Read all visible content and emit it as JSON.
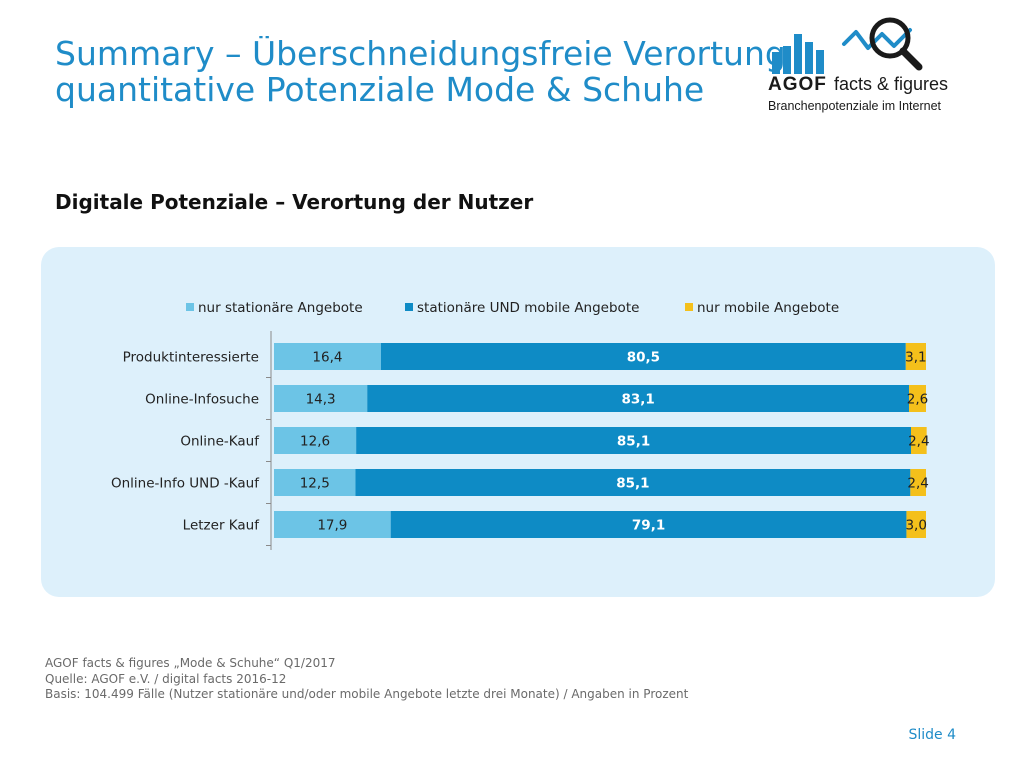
{
  "slide": {
    "title_line1": "Summary – Überschneidungsfreie Verortung",
    "title_line2": "quantitative Potenziale Mode & Schuhe",
    "subtitle": "Digitale Potenziale – Verortung der Nutzer",
    "slide_number": "Slide 4"
  },
  "logo": {
    "brand": "AGOF",
    "tagline": "facts & figures",
    "caption": "Branchenpotenziale im Internet",
    "colors": {
      "brand_blue": "#1F8CC8",
      "text_dark": "#1a1a1a"
    }
  },
  "footer": {
    "line1": "AGOF facts & figures „Mode & Schuhe“ Q1/2017",
    "line2": "Quelle: AGOF e.V. / digital facts 2016-12",
    "line3": "Basis: 104.499 Fälle (Nutzer stationäre und/oder mobile Angebote letzte drei Monate) / Angaben in Prozent"
  },
  "chart_data": {
    "type": "bar",
    "orientation": "horizontal",
    "stacked": true,
    "percent_stacked": true,
    "legend_position": "top",
    "grid": false,
    "xlim": [
      0,
      100
    ],
    "categories": [
      "Produktinteressierte",
      "Online-Infosuche",
      "Online-Kauf",
      "Online-Info UND -Kauf",
      "Letzer Kauf"
    ],
    "series": [
      {
        "name": "nur stationäre Angebote",
        "color": "#6CC4E6",
        "values": [
          16.4,
          14.3,
          12.6,
          12.5,
          17.9
        ],
        "labels": [
          "16,4",
          "14,3",
          "12,6",
          "12,5",
          "17,9"
        ],
        "label_color": "#222222",
        "label_bold": false
      },
      {
        "name": "stationäre UND mobile Angebote",
        "color": "#0E8BC5",
        "values": [
          80.5,
          83.1,
          85.1,
          85.1,
          79.1
        ],
        "labels": [
          "80,5",
          "83,1",
          "85,1",
          "85,1",
          "79,1"
        ],
        "label_color": "#ffffff",
        "label_bold": true
      },
      {
        "name": "nur mobile Angebote",
        "color": "#F4C01B",
        "values": [
          3.1,
          2.6,
          2.4,
          2.4,
          3.0
        ],
        "labels": [
          "3,1",
          "2,6",
          "2,4",
          "2,4",
          "3,0"
        ],
        "label_color": "#222222",
        "label_bold": false
      }
    ]
  }
}
